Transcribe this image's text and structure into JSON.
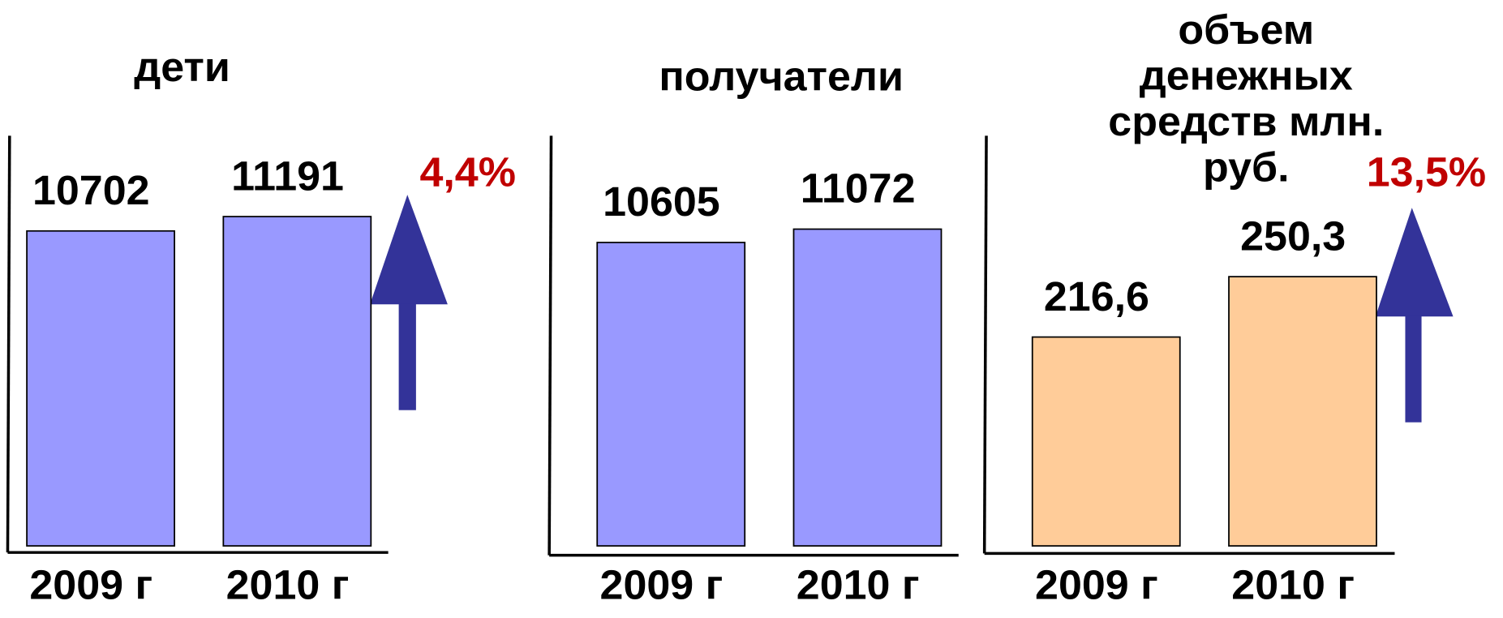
{
  "chart_data": [
    {
      "type": "bar",
      "title": [
        "дети"
      ],
      "categories": [
        "2009 г",
        "2010 г"
      ],
      "values": [
        10702,
        11191
      ],
      "color": "#9999ff",
      "ylim": [
        0,
        14000
      ],
      "annotation": "4,4%"
    },
    {
      "type": "bar",
      "title": [
        "получатели"
      ],
      "categories": [
        "2009 г",
        "2010 г"
      ],
      "values": [
        10605,
        11072
      ],
      "color": "#9999ff",
      "ylim": [
        0,
        14400
      ]
    },
    {
      "type": "bar",
      "title": [
        "объем",
        "денежных",
        "средств млн.",
        "руб."
      ],
      "categories": [
        "2009 г",
        "2010 г"
      ],
      "values": [
        216.6,
        250.3
      ],
      "value_labels": [
        "216,6",
        "250,3"
      ],
      "color": "#ffcc99",
      "ylim": [
        100,
        330
      ],
      "annotation": "13,5%"
    }
  ]
}
